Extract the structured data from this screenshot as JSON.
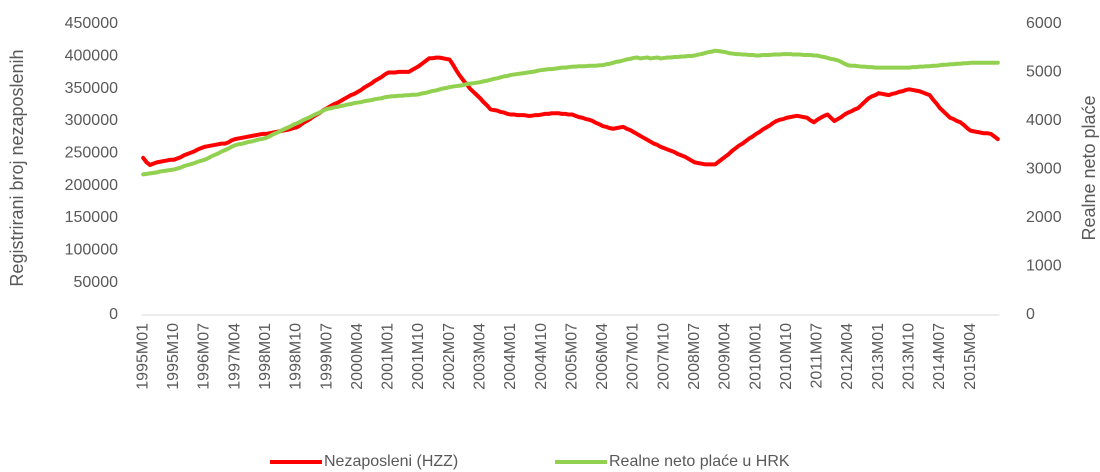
{
  "chart_data": {
    "type": "line",
    "ylabel": "Registrirani broj nezaposlenih",
    "y2label": "Realne neto plaće",
    "ylim": [
      0,
      450000
    ],
    "yticks": [
      0,
      50000,
      100000,
      150000,
      200000,
      250000,
      300000,
      350000,
      400000,
      450000
    ],
    "y2lim": [
      0,
      6000
    ],
    "y2ticks": [
      0,
      1000,
      2000,
      3000,
      4000,
      5000,
      6000
    ],
    "legend": "bottom",
    "categories": [
      "1995M01",
      null,
      null,
      null,
      null,
      null,
      null,
      null,
      null,
      "1995M10",
      null,
      null,
      null,
      null,
      null,
      null,
      null,
      null,
      "1996M07",
      null,
      null,
      null,
      null,
      null,
      null,
      null,
      null,
      "1997M04",
      null,
      null,
      null,
      null,
      null,
      null,
      null,
      null,
      "1998M01",
      null,
      null,
      null,
      null,
      null,
      null,
      null,
      null,
      "1998M10",
      null,
      null,
      null,
      null,
      null,
      null,
      null,
      null,
      "1999M07",
      null,
      null,
      null,
      null,
      null,
      null,
      null,
      null,
      "2000M04",
      null,
      null,
      null,
      null,
      null,
      null,
      null,
      null,
      "2001M01",
      null,
      null,
      null,
      null,
      null,
      null,
      null,
      null,
      "2001M10",
      null,
      null,
      null,
      null,
      null,
      null,
      null,
      null,
      "2002M07",
      null,
      null,
      null,
      null,
      null,
      null,
      null,
      null,
      "2003M04",
      null,
      null,
      null,
      null,
      null,
      null,
      null,
      null,
      "2004M01",
      null,
      null,
      null,
      null,
      null,
      null,
      null,
      null,
      "2004M10",
      null,
      null,
      null,
      null,
      null,
      null,
      null,
      null,
      "2005M07",
      null,
      null,
      null,
      null,
      null,
      null,
      null,
      null,
      "2006M04",
      null,
      null,
      null,
      null,
      null,
      null,
      null,
      null,
      "2007M01",
      null,
      null,
      null,
      null,
      null,
      null,
      null,
      null,
      "2007M10",
      null,
      null,
      null,
      null,
      null,
      null,
      null,
      null,
      "2008M07",
      null,
      null,
      null,
      null,
      null,
      null,
      null,
      null,
      "2009M04",
      null,
      null,
      null,
      null,
      null,
      null,
      null,
      null,
      "2010M01",
      null,
      null,
      null,
      null,
      null,
      null,
      null,
      null,
      "2010M10",
      null,
      null,
      null,
      null,
      null,
      null,
      null,
      null,
      "2011M07",
      null,
      null,
      null,
      null,
      null,
      null,
      null,
      null,
      "2012M04",
      null,
      null,
      null,
      null,
      null,
      null,
      null,
      null,
      "2013M01",
      null,
      null,
      null,
      null,
      null,
      null,
      null,
      null,
      "2013M10",
      null,
      null,
      null,
      null,
      null,
      null,
      null,
      null,
      "2014M07",
      null,
      null,
      null,
      null,
      null,
      null,
      null,
      null,
      "2015M04",
      null,
      null,
      null,
      null,
      null,
      null,
      null,
      null
    ],
    "series": [
      {
        "name": "Nezaposleni (HZZ)",
        "color": "#ff0000",
        "axis": "y",
        "values": [
          243000,
          236000,
          232000,
          234000,
          236000,
          237000,
          238000,
          239000,
          240000,
          240000,
          242000,
          244000,
          247000,
          249000,
          251000,
          253000,
          256000,
          258000,
          260000,
          261000,
          262000,
          263000,
          264000,
          265000,
          265000,
          267000,
          270000,
          272000,
          273000,
          274000,
          275000,
          276000,
          277000,
          278000,
          279000,
          280000,
          280000,
          281000,
          282000,
          283000,
          284000,
          285000,
          286000,
          287000,
          289000,
          290000,
          293000,
          297000,
          300000,
          303000,
          307000,
          310000,
          313000,
          317000,
          320000,
          323000,
          326000,
          328000,
          331000,
          334000,
          337000,
          340000,
          342000,
          345000,
          348000,
          352000,
          355000,
          358000,
          362000,
          365000,
          368000,
          372000,
          375000,
          375000,
          375000,
          376000,
          376000,
          376000,
          376000,
          379000,
          382000,
          385000,
          389000,
          393000,
          397000,
          397000,
          398000,
          398000,
          397000,
          396000,
          395000,
          387000,
          378000,
          370000,
          363000,
          357000,
          350000,
          345000,
          340000,
          335000,
          329000,
          324000,
          318000,
          317000,
          316000,
          314000,
          313000,
          311000,
          310000,
          310000,
          309000,
          309000,
          309000,
          308000,
          308000,
          309000,
          309000,
          310000,
          311000,
          311000,
          312000,
          312000,
          312000,
          311000,
          311000,
          310000,
          310000,
          308000,
          306000,
          305000,
          303000,
          302000,
          300000,
          297000,
          295000,
          292000,
          291000,
          289000,
          288000,
          289000,
          290000,
          291000,
          288000,
          286000,
          283000,
          280000,
          277000,
          274000,
          271000,
          268000,
          265000,
          263000,
          260000,
          258000,
          256000,
          254000,
          252000,
          249000,
          247000,
          245000,
          242000,
          239000,
          236000,
          235000,
          234000,
          233000,
          233000,
          233000,
          233000,
          237000,
          241000,
          245000,
          249000,
          254000,
          258000,
          262000,
          265000,
          269000,
          273000,
          276000,
          280000,
          283000,
          287000,
          290000,
          293000,
          297000,
          300000,
          302000,
          303000,
          305000,
          306000,
          307000,
          308000,
          307000,
          306000,
          305000,
          301000,
          298000,
          302000,
          305000,
          308000,
          310000,
          305000,
          300000,
          303000,
          306000,
          310000,
          313000,
          315000,
          318000,
          320000,
          325000,
          330000,
          335000,
          338000,
          340000,
          343000,
          342000,
          341000,
          340000,
          342000,
          343000,
          345000,
          346000,
          348000,
          349000,
          348000,
          347000,
          346000,
          344000,
          342000,
          340000,
          333000,
          327000,
          320000,
          315000,
          310000,
          305000,
          303000,
          300000,
          298000,
          294000,
          289000,
          285000,
          284000,
          283000,
          282000,
          281000,
          281000,
          280000,
          276000,
          272000
        ]
      },
      {
        "name": "Realne neto plaće u HRK",
        "color": "#92d050",
        "axis": "y2",
        "values": [
          2900,
          2910,
          2920,
          2930,
          2940,
          2960,
          2970,
          2980,
          2990,
          3000,
          3020,
          3040,
          3070,
          3090,
          3110,
          3130,
          3160,
          3180,
          3200,
          3230,
          3270,
          3300,
          3330,
          3370,
          3400,
          3430,
          3470,
          3500,
          3520,
          3530,
          3550,
          3570,
          3580,
          3600,
          3620,
          3630,
          3650,
          3680,
          3720,
          3750,
          3780,
          3820,
          3850,
          3880,
          3920,
          3950,
          3980,
          4020,
          4050,
          4080,
          4120,
          4150,
          4180,
          4220,
          4250,
          4260,
          4280,
          4290,
          4310,
          4320,
          4340,
          4350,
          4370,
          4380,
          4390,
          4410,
          4420,
          4430,
          4450,
          4460,
          4470,
          4490,
          4500,
          4510,
          4510,
          4520,
          4520,
          4530,
          4530,
          4540,
          4540,
          4550,
          4570,
          4580,
          4600,
          4620,
          4630,
          4650,
          4670,
          4680,
          4700,
          4710,
          4720,
          4730,
          4740,
          4760,
          4770,
          4780,
          4790,
          4800,
          4820,
          4830,
          4850,
          4870,
          4880,
          4900,
          4920,
          4930,
          4950,
          4960,
          4970,
          4980,
          4990,
          5000,
          5010,
          5020,
          5040,
          5050,
          5060,
          5070,
          5070,
          5080,
          5090,
          5100,
          5100,
          5110,
          5120,
          5120,
          5130,
          5130,
          5130,
          5140,
          5140,
          5140,
          5150,
          5150,
          5170,
          5180,
          5200,
          5220,
          5230,
          5250,
          5270,
          5280,
          5300,
          5310,
          5290,
          5300,
          5310,
          5290,
          5300,
          5310,
          5290,
          5300,
          5310,
          5310,
          5320,
          5320,
          5330,
          5330,
          5340,
          5340,
          5350,
          5370,
          5380,
          5400,
          5420,
          5430,
          5450,
          5440,
          5430,
          5420,
          5400,
          5390,
          5380,
          5380,
          5370,
          5370,
          5360,
          5360,
          5350,
          5350,
          5360,
          5360,
          5360,
          5370,
          5370,
          5370,
          5380,
          5380,
          5380,
          5370,
          5370,
          5370,
          5360,
          5360,
          5360,
          5350,
          5350,
          5330,
          5320,
          5300,
          5280,
          5270,
          5250,
          5220,
          5180,
          5150,
          5140,
          5140,
          5130,
          5120,
          5120,
          5110,
          5110,
          5100,
          5100,
          5100,
          5100,
          5100,
          5100,
          5100,
          5100,
          5100,
          5100,
          5100,
          5110,
          5110,
          5120,
          5120,
          5130,
          5130,
          5140,
          5140,
          5150,
          5160,
          5160,
          5170,
          5170,
          5180,
          5180,
          5190,
          5190,
          5200,
          5200,
          5200,
          5200,
          5200,
          5200,
          5200,
          5200,
          5200
        ]
      }
    ]
  }
}
